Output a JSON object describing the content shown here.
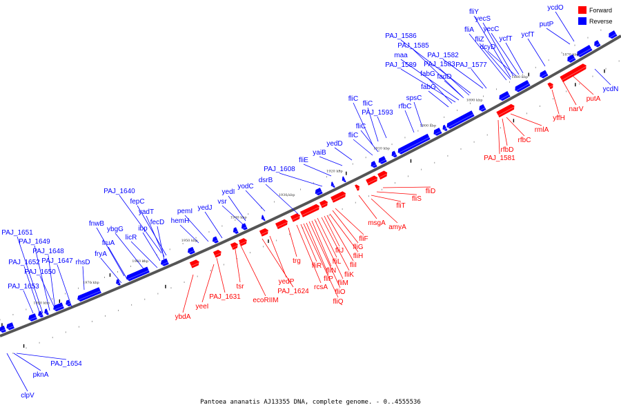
{
  "colors": {
    "forward": "#ff0000",
    "reverse": "#0000ff",
    "backbone": "#555555"
  },
  "legend": {
    "forward": "Forward",
    "reverse": "Reverse"
  },
  "caption": "Pantoea ananatis AJ13355 DNA, complete genome. - 0..4555536",
  "scale_labels": [
    "1870 kbp",
    "1880 kbp",
    "1890 kbp",
    "1900 kbp",
    "1910 kbp",
    "1920 kbp",
    "1930 kbp",
    "1940 kbp",
    "1950 kbp",
    "1960 kbp",
    "1970 kbp",
    "1980 kbp",
    "1990 kbp"
  ],
  "reverse_genes": [
    "ycdO",
    "fliY",
    "yecS",
    "yecC",
    "fliA",
    "fliZ",
    "dcyD",
    "ycfT",
    "ycfT",
    "putP",
    "PAJ_1586",
    "PAJ_1585",
    "maa",
    "PAJ_1582",
    "PAJ_1589",
    "PAJ_1583",
    "fadD",
    "PAJ_1577",
    "fabG",
    "fabG",
    "spsC",
    "rfbC",
    "fliC",
    "fliC",
    "PAJ_1593",
    "fliC",
    "fliC",
    "yedD",
    "yaiB",
    "fliE",
    "PAJ_1608",
    "dsrB",
    "yodC",
    "yedI",
    "vsr",
    "yedJ",
    "pemI",
    "hemH",
    "PAJ_1640",
    "fepC",
    "yadT",
    "fecD",
    "ibp",
    "licR",
    "ybgG",
    "fnwB",
    "fruA",
    "fryA",
    "rhsD",
    "PAJ_1651",
    "PAJ_1649",
    "PAJ_1648",
    "PAJ_1647",
    "PAJ_1652",
    "PAJ_1650",
    "PAJ_1653",
    "ycdN",
    "PAJ_1654",
    "pknA",
    "clpV"
  ],
  "forward_genes": [
    "putA",
    "narV",
    "yffH",
    "rmlA",
    "rfbC",
    "rfbD",
    "PAJ_1581",
    "fliD",
    "fliS",
    "fliT",
    "msgA",
    "amyA",
    "fliF",
    "fliG",
    "fliH",
    "fliI",
    "fliJ",
    "fliK",
    "fliL",
    "fliM",
    "fliN",
    "fliO",
    "fliP",
    "fliQ",
    "fliR",
    "rcsA",
    "trg",
    "yedP",
    "PAJ_1624",
    "ecoRIIM",
    "tsr",
    "PAJ_1631",
    "yeeI",
    "ybdA"
  ]
}
